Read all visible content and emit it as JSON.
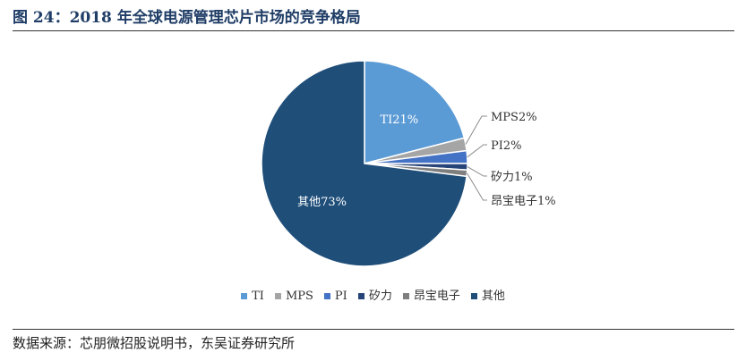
{
  "figure": {
    "title": "图 24：2018 年全球电源管理芯片市场的竞争格局",
    "source": "数据来源：芯朋微招股说明书，东吴证券研究所"
  },
  "chart_data": {
    "type": "pie",
    "title": "",
    "categories": [
      "TI",
      "MPS",
      "PI",
      "矽力",
      "昂宝电子",
      "其他"
    ],
    "values": [
      21,
      2,
      2,
      1,
      1,
      73
    ],
    "data_labels": [
      "TI21%",
      "MPS2%",
      "PI2%",
      "矽力1%",
      "昂宝电子1%",
      "其他73%"
    ],
    "colors": [
      "#5b9bd5",
      "#a5a5a5",
      "#4472c4",
      "#264478",
      "#7f7f7f",
      "#1f4e79"
    ],
    "legend_position": "bottom",
    "grid": false
  }
}
